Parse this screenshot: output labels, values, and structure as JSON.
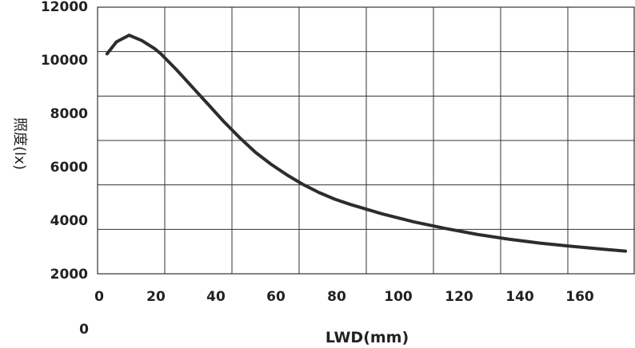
{
  "chart_data": {
    "type": "line",
    "xlabel": "LWD(mm)",
    "ylabel": "照度(lx)",
    "x_ticks": [
      "0",
      "20",
      "40",
      "60",
      "80",
      "100",
      "120",
      "140",
      "160"
    ],
    "y_ticks": [
      "12000",
      "10000",
      "8000",
      "6000",
      "4000",
      "2000"
    ],
    "stray_label": "0",
    "xlim": [
      0,
      170
    ],
    "ylim": [
      2000,
      12000
    ],
    "grid": true,
    "series": [
      {
        "x": [
          3,
          6,
          10,
          14,
          18,
          20,
          25,
          30,
          35,
          40,
          45,
          50,
          55,
          60,
          65,
          70,
          75,
          80,
          90,
          100,
          110,
          120,
          130,
          140,
          150,
          160,
          167
        ],
        "values": [
          10250,
          10700,
          10950,
          10750,
          10450,
          10250,
          9650,
          9000,
          8350,
          7700,
          7100,
          6550,
          6100,
          5700,
          5350,
          5050,
          4800,
          4600,
          4250,
          3950,
          3700,
          3480,
          3300,
          3150,
          3030,
          2920,
          2850
        ]
      }
    ],
    "line_color": "#2d2d2d",
    "grid_color": "#333333"
  }
}
